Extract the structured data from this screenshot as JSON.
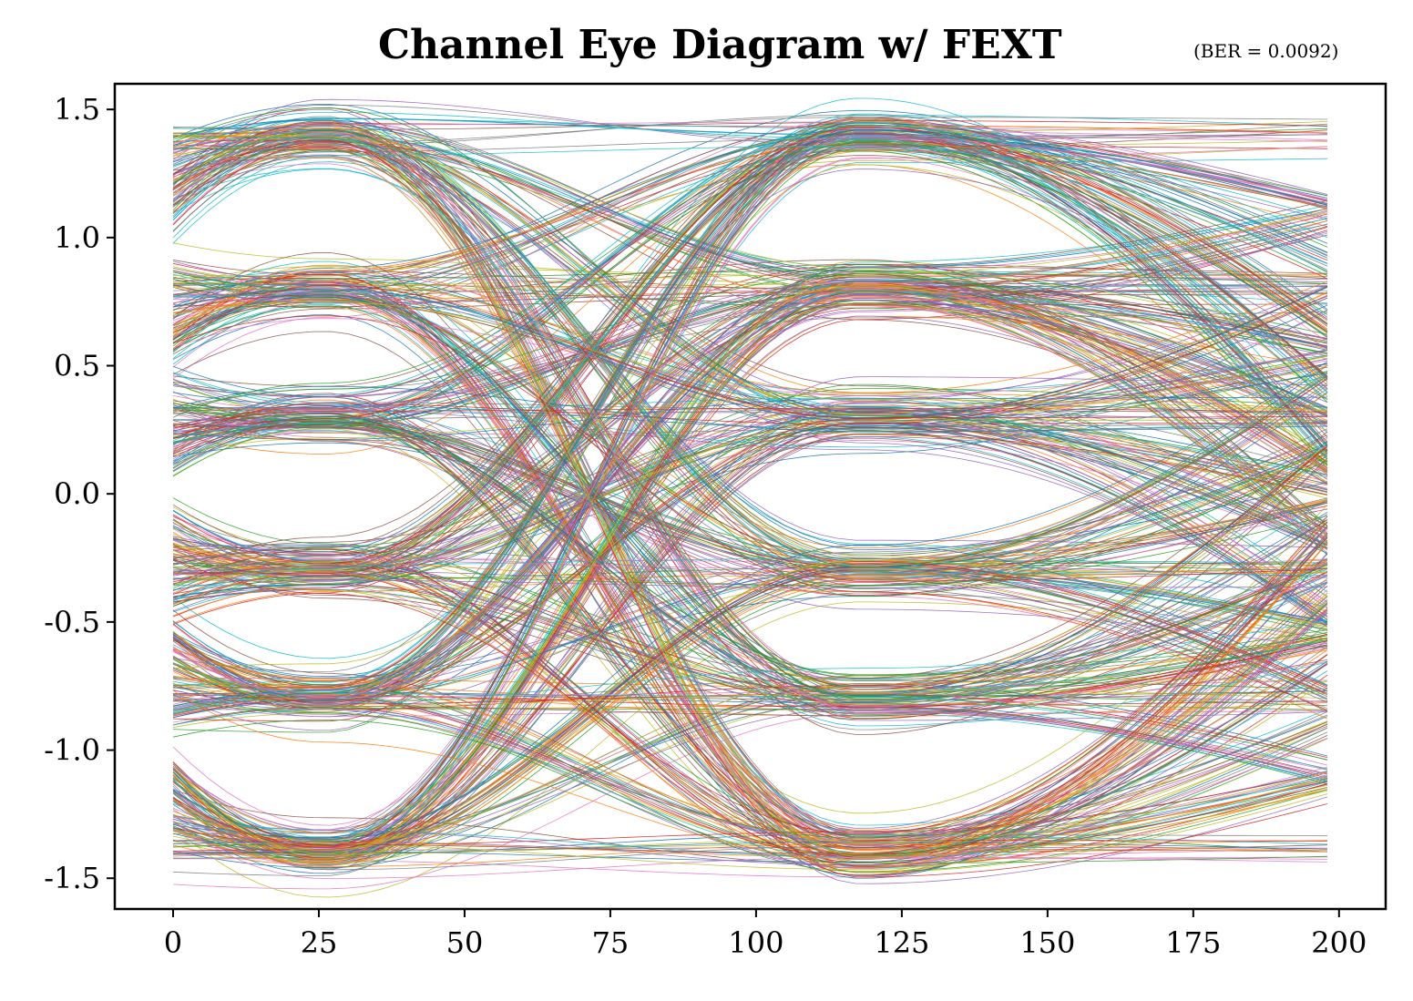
{
  "chart_data": {
    "type": "line",
    "title": "Channel Eye Diagram w/ FEXT",
    "subtitle": "(BER = 0.0092)",
    "xlabel": "",
    "ylabel": "",
    "xlim": [
      -10,
      208
    ],
    "ylim": [
      -1.62,
      1.6
    ],
    "x_ticks": [
      0,
      25,
      50,
      75,
      100,
      125,
      150,
      175,
      200
    ],
    "x_tick_labels": [
      "0",
      "25",
      "50",
      "75",
      "100",
      "125",
      "150",
      "175",
      "200"
    ],
    "y_ticks": [
      1.5,
      1.0,
      0.5,
      0.0,
      -0.5,
      -1.0,
      -1.5
    ],
    "y_tick_labels": [
      "1.5",
      "1.0",
      "0.5",
      "0.0",
      "-0.5",
      "-1.0",
      "-1.5"
    ],
    "x_range_traces": [
      0,
      198
    ],
    "levels": [
      -1.4,
      -0.8,
      -0.3,
      0.3,
      0.8,
      1.4
    ],
    "symbol_centers": [
      38,
      130
    ],
    "grid": false,
    "legend": "none",
    "series_colors": [
      "#1f77b4",
      "#ff7f0e",
      "#2ca02c",
      "#d62728",
      "#9467bd",
      "#8c564b",
      "#e377c2",
      "#7f7f7f",
      "#bcbd22",
      "#17becf"
    ]
  }
}
